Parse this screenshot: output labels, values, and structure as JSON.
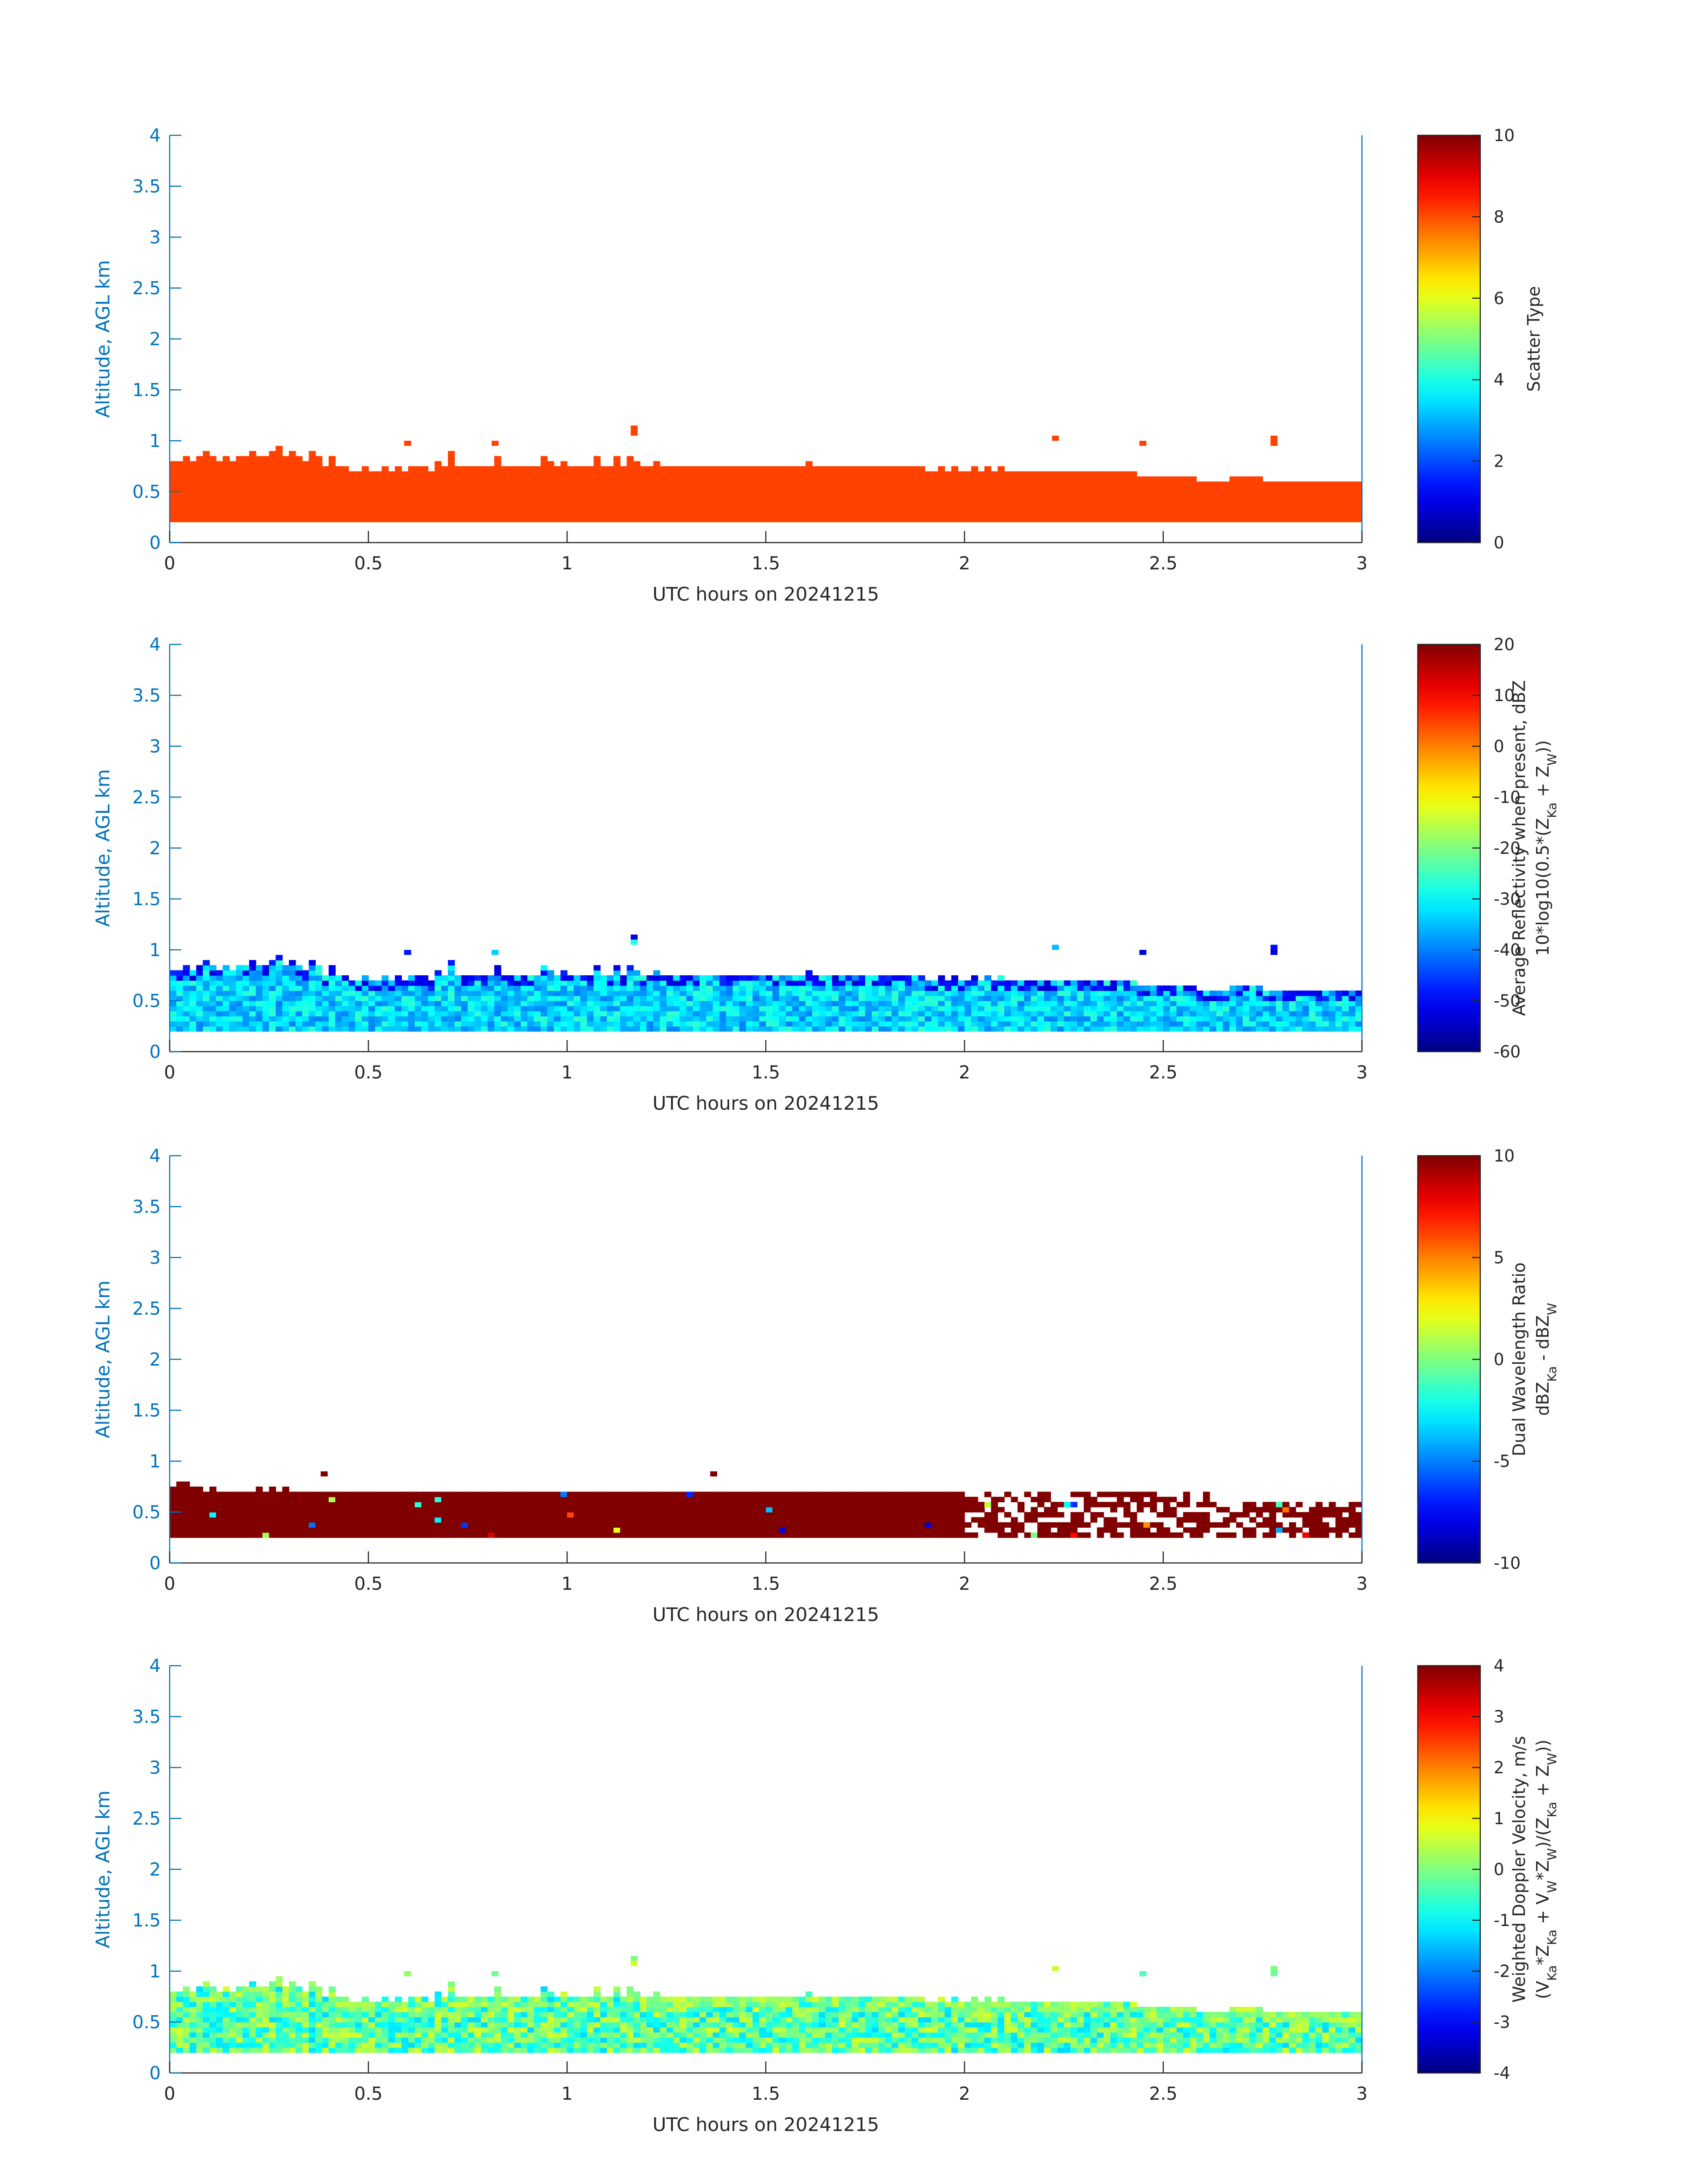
{
  "chart_data": [
    {
      "type": "heatmap",
      "xlabel": "UTC hours on 20241215",
      "ylabel": "Altitude, AGL km",
      "xlim": [
        0,
        3
      ],
      "ylim": [
        0,
        4
      ],
      "xticks": [
        "0",
        "0.5",
        "1",
        "1.5",
        "2",
        "2.5",
        "3"
      ],
      "yticks": [
        "0",
        "0.5",
        "1",
        "1.5",
        "2",
        "2.5",
        "3",
        "3.5",
        "4"
      ],
      "colorbar": {
        "label_lines": [
          "Scatter Type"
        ],
        "range": [
          0,
          10
        ],
        "ticks": [
          "0",
          "2",
          "4",
          "6",
          "8",
          "10"
        ]
      },
      "field": {
        "kind": "constant",
        "value": 8.1
      },
      "echo": {
        "base_km": 0.2,
        "top_km": [
          0.8,
          0.8,
          0.85,
          0.8,
          0.85,
          0.9,
          0.85,
          0.8,
          0.85,
          0.8,
          0.85,
          0.85,
          0.9,
          0.85,
          0.85,
          0.9,
          0.95,
          0.85,
          0.9,
          0.85,
          0.8,
          0.9,
          0.85,
          0.75,
          0.85,
          0.75,
          0.75,
          0.7,
          0.7,
          0.75,
          0.7,
          0.7,
          0.75,
          0.7,
          0.75,
          0.7,
          0.75,
          0.75,
          0.75,
          0.7,
          0.8,
          0.75,
          0.9,
          0.75,
          0.75,
          0.75,
          0.75,
          0.75,
          0.75,
          0.85,
          0.75,
          0.75,
          0.75,
          0.75,
          0.75,
          0.75,
          0.85,
          0.8,
          0.75,
          0.8,
          0.75,
          0.75,
          0.75,
          0.75,
          0.85,
          0.75,
          0.75,
          0.85,
          0.75,
          0.85,
          0.8,
          0.75,
          0.75,
          0.8,
          0.75,
          0.75,
          0.75,
          0.75,
          0.75,
          0.75,
          0.75,
          0.75,
          0.75,
          0.75,
          0.75,
          0.75,
          0.75,
          0.75,
          0.75,
          0.75,
          0.75,
          0.75,
          0.75,
          0.75,
          0.75,
          0.75,
          0.8,
          0.75,
          0.75,
          0.75,
          0.75,
          0.75,
          0.75,
          0.75,
          0.75,
          0.75,
          0.75,
          0.75,
          0.75,
          0.75,
          0.75,
          0.75,
          0.75,
          0.75,
          0.7,
          0.7,
          0.75,
          0.7,
          0.75,
          0.7,
          0.7,
          0.75,
          0.7,
          0.75,
          0.7,
          0.75,
          0.7,
          0.7,
          0.7,
          0.7,
          0.7,
          0.7,
          0.7,
          0.7,
          0.7,
          0.7,
          0.7,
          0.7,
          0.7,
          0.7,
          0.7,
          0.7,
          0.7,
          0.7,
          0.7,
          0.7,
          0.65,
          0.65,
          0.65,
          0.65,
          0.65,
          0.65,
          0.65,
          0.65,
          0.65,
          0.6,
          0.6,
          0.6,
          0.6,
          0.6,
          0.65,
          0.65,
          0.65,
          0.65,
          0.65,
          0.6,
          0.6,
          0.6,
          0.6,
          0.6,
          0.6,
          0.6,
          0.6,
          0.6,
          0.6
        ],
        "isolated": [
          [
            0.59,
            0.95
          ],
          [
            0.81,
            0.95
          ],
          [
            1.16,
            1.1
          ],
          [
            1.16,
            1.05
          ],
          [
            2.22,
            1.0
          ],
          [
            2.44,
            0.95
          ],
          [
            2.77,
            1.0
          ],
          [
            2.77,
            0.95
          ]
        ]
      }
    },
    {
      "type": "heatmap",
      "xlabel": "UTC hours on 20241215",
      "ylabel": "Altitude, AGL km",
      "xlim": [
        0,
        3
      ],
      "ylim": [
        0,
        4
      ],
      "xticks": [
        "0",
        "0.5",
        "1",
        "1.5",
        "2",
        "2.5",
        "3"
      ],
      "yticks": [
        "0",
        "0.5",
        "1",
        "1.5",
        "2",
        "2.5",
        "3",
        "3.5",
        "4"
      ],
      "colorbar": {
        "label_lines": [
          "Average Reflectivity when present, dBZ",
          "10*log10(0.5*(Z_Ka + Z_W))"
        ],
        "range": [
          -60,
          20
        ],
        "ticks": [
          "-60",
          "-50",
          "-40",
          "-30",
          "-20",
          "-10",
          "0",
          "10",
          "20"
        ]
      },
      "field": {
        "kind": "random",
        "mean": -33,
        "spread": 7,
        "top_mean": -50,
        "seed": 2
      },
      "echo": {
        "base_km": 0.2,
        "top_km": [
          0.8,
          0.8,
          0.85,
          0.8,
          0.85,
          0.9,
          0.85,
          0.8,
          0.85,
          0.8,
          0.85,
          0.85,
          0.9,
          0.85,
          0.85,
          0.9,
          0.95,
          0.85,
          0.9,
          0.85,
          0.8,
          0.9,
          0.85,
          0.75,
          0.85,
          0.75,
          0.75,
          0.7,
          0.7,
          0.75,
          0.7,
          0.7,
          0.75,
          0.7,
          0.75,
          0.7,
          0.75,
          0.75,
          0.75,
          0.7,
          0.8,
          0.75,
          0.9,
          0.75,
          0.75,
          0.75,
          0.75,
          0.75,
          0.75,
          0.85,
          0.75,
          0.75,
          0.75,
          0.75,
          0.75,
          0.75,
          0.85,
          0.8,
          0.75,
          0.8,
          0.75,
          0.75,
          0.75,
          0.75,
          0.85,
          0.75,
          0.75,
          0.85,
          0.75,
          0.85,
          0.8,
          0.75,
          0.75,
          0.8,
          0.75,
          0.75,
          0.75,
          0.75,
          0.75,
          0.75,
          0.75,
          0.75,
          0.75,
          0.75,
          0.75,
          0.75,
          0.75,
          0.75,
          0.75,
          0.75,
          0.75,
          0.75,
          0.75,
          0.75,
          0.75,
          0.75,
          0.8,
          0.75,
          0.75,
          0.75,
          0.75,
          0.75,
          0.75,
          0.75,
          0.75,
          0.75,
          0.75,
          0.75,
          0.75,
          0.75,
          0.75,
          0.75,
          0.75,
          0.75,
          0.7,
          0.7,
          0.75,
          0.7,
          0.75,
          0.7,
          0.7,
          0.75,
          0.7,
          0.75,
          0.7,
          0.75,
          0.7,
          0.7,
          0.7,
          0.7,
          0.7,
          0.7,
          0.7,
          0.7,
          0.7,
          0.7,
          0.7,
          0.7,
          0.7,
          0.7,
          0.7,
          0.7,
          0.7,
          0.7,
          0.7,
          0.7,
          0.65,
          0.65,
          0.65,
          0.65,
          0.65,
          0.65,
          0.65,
          0.65,
          0.65,
          0.6,
          0.6,
          0.6,
          0.6,
          0.6,
          0.65,
          0.65,
          0.65,
          0.65,
          0.65,
          0.6,
          0.6,
          0.6,
          0.6,
          0.6,
          0.6,
          0.6,
          0.6,
          0.6,
          0.6
        ],
        "isolated": [
          [
            0.59,
            0.95
          ],
          [
            0.81,
            0.95
          ],
          [
            1.16,
            1.1
          ],
          [
            1.16,
            1.05
          ],
          [
            2.22,
            1.0
          ],
          [
            2.44,
            0.95
          ],
          [
            2.77,
            1.0
          ],
          [
            2.77,
            0.95
          ]
        ]
      }
    },
    {
      "type": "heatmap",
      "xlabel": "UTC hours on 20241215",
      "ylabel": "Altitude, AGL km",
      "xlim": [
        0,
        3
      ],
      "ylim": [
        0,
        4
      ],
      "xticks": [
        "0",
        "0.5",
        "1",
        "1.5",
        "2",
        "2.5",
        "3"
      ],
      "yticks": [
        "0",
        "0.5",
        "1",
        "1.5",
        "2",
        "2.5",
        "3",
        "3.5",
        "4"
      ],
      "colorbar": {
        "label_lines": [
          "Dual Wavelength Ratio",
          "dBZ_Ka - dBZ_W"
        ],
        "range": [
          -10,
          10
        ],
        "ticks": [
          "-10",
          "-5",
          "0",
          "5",
          "10"
        ]
      },
      "field": {
        "kind": "dwr",
        "value": 10,
        "outlier_rate": 0.02,
        "seed": 3
      },
      "echo": {
        "base_km": 0.25,
        "top_km": [
          0.75,
          0.8,
          0.8,
          0.75,
          0.75,
          0.7,
          0.75,
          0.7,
          0.7,
          0.7,
          0.7,
          0.7,
          0.7,
          0.75,
          0.7,
          0.75,
          0.7,
          0.75,
          0.7,
          0.7,
          0.7,
          0.7,
          0.7,
          0.7,
          0.7,
          0.7,
          0.7,
          0.7,
          0.7,
          0.7,
          0.7,
          0.7,
          0.7,
          0.7,
          0.7,
          0.7,
          0.7,
          0.7,
          0.7,
          0.7,
          0.7,
          0.7,
          0.7,
          0.7,
          0.7,
          0.7,
          0.7,
          0.7,
          0.7,
          0.7,
          0.7,
          0.7,
          0.7,
          0.7,
          0.7,
          0.7,
          0.7,
          0.7,
          0.7,
          0.7,
          0.7,
          0.7,
          0.7,
          0.7,
          0.7,
          0.7,
          0.7,
          0.7,
          0.7,
          0.7,
          0.7,
          0.7,
          0.7,
          0.7,
          0.7,
          0.7,
          0.7,
          0.7,
          0.7,
          0.7,
          0.7,
          0.7,
          0.7,
          0.7,
          0.7,
          0.7,
          0.7,
          0.7,
          0.7,
          0.7,
          0.7,
          0.7,
          0.7,
          0.7,
          0.7,
          0.7,
          0.7,
          0.7,
          0.7,
          0.7,
          0.7,
          0.7,
          0.7,
          0.7,
          0.7,
          0.7,
          0.7,
          0.7,
          0.7,
          0.7,
          0.7,
          0.7,
          0.7,
          0.7,
          0.7,
          0.7,
          0.7,
          0.7,
          0.7,
          0.7,
          0.7,
          0.7,
          0.7,
          0.7,
          0.7,
          0.7,
          0.7,
          0.7,
          0.7,
          0.7,
          0.7,
          0.7,
          0.7,
          0.7,
          0.7,
          0.7,
          0.7,
          0.7,
          0.7,
          0.7,
          0.7,
          0.7,
          0.7,
          0.7,
          0.7,
          0.7,
          0.7,
          0.7,
          0.7,
          0.7,
          0.7,
          0.7,
          0.7,
          0.7,
          0.7,
          0.7,
          0.7,
          0.6,
          0.6,
          0.6,
          0.6,
          0.6,
          0.6,
          0.6,
          0.6,
          0.6,
          0.6,
          0.6,
          0.6,
          0.6,
          0.6,
          0.6,
          0.6,
          0.6,
          0.6,
          0.6
        ],
        "gap_from_x": 2.0,
        "gap_rate": 0.4,
        "isolated": [
          [
            0.38,
            0.85
          ],
          [
            1.36,
            0.85
          ]
        ]
      }
    },
    {
      "type": "heatmap",
      "xlabel": "UTC hours on 20241215",
      "ylabel": "Altitude, AGL km",
      "xlim": [
        0,
        3
      ],
      "ylim": [
        0,
        4
      ],
      "xticks": [
        "0",
        "0.5",
        "1",
        "1.5",
        "2",
        "2.5",
        "3"
      ],
      "yticks": [
        "0",
        "0.5",
        "1",
        "1.5",
        "2",
        "2.5",
        "3",
        "3.5",
        "4"
      ],
      "colorbar": {
        "label_lines": [
          "Weighted Doppler Velocity, m/s",
          "(V_Ka*Z_Ka + V_W*Z_W)/(Z_Ka + Z_W))"
        ],
        "range": [
          -4,
          4
        ],
        "ticks": [
          "-4",
          "-3",
          "-2",
          "-1",
          "0",
          "1",
          "2",
          "3",
          "4"
        ]
      },
      "field": {
        "kind": "random",
        "mean": -0.3,
        "spread": 1.0,
        "top_mean": 0.2,
        "seed": 4
      },
      "echo": {
        "base_km": 0.2,
        "top_km": [
          0.8,
          0.8,
          0.85,
          0.8,
          0.85,
          0.9,
          0.85,
          0.8,
          0.85,
          0.8,
          0.85,
          0.85,
          0.9,
          0.85,
          0.85,
          0.9,
          0.95,
          0.85,
          0.9,
          0.85,
          0.8,
          0.9,
          0.85,
          0.75,
          0.85,
          0.75,
          0.75,
          0.7,
          0.7,
          0.75,
          0.7,
          0.7,
          0.75,
          0.7,
          0.75,
          0.7,
          0.75,
          0.75,
          0.75,
          0.7,
          0.8,
          0.75,
          0.9,
          0.75,
          0.75,
          0.75,
          0.75,
          0.75,
          0.75,
          0.85,
          0.75,
          0.75,
          0.75,
          0.75,
          0.75,
          0.75,
          0.85,
          0.8,
          0.75,
          0.8,
          0.75,
          0.75,
          0.75,
          0.75,
          0.85,
          0.75,
          0.75,
          0.85,
          0.75,
          0.85,
          0.8,
          0.75,
          0.75,
          0.8,
          0.75,
          0.75,
          0.75,
          0.75,
          0.75,
          0.75,
          0.75,
          0.75,
          0.75,
          0.75,
          0.75,
          0.75,
          0.75,
          0.75,
          0.75,
          0.75,
          0.75,
          0.75,
          0.75,
          0.75,
          0.75,
          0.75,
          0.8,
          0.75,
          0.75,
          0.75,
          0.75,
          0.75,
          0.75,
          0.75,
          0.75,
          0.75,
          0.75,
          0.75,
          0.75,
          0.75,
          0.75,
          0.75,
          0.75,
          0.75,
          0.7,
          0.7,
          0.75,
          0.7,
          0.75,
          0.7,
          0.7,
          0.75,
          0.7,
          0.75,
          0.7,
          0.75,
          0.7,
          0.7,
          0.7,
          0.7,
          0.7,
          0.7,
          0.7,
          0.7,
          0.7,
          0.7,
          0.7,
          0.7,
          0.7,
          0.7,
          0.7,
          0.7,
          0.7,
          0.7,
          0.7,
          0.7,
          0.65,
          0.65,
          0.65,
          0.65,
          0.65,
          0.65,
          0.65,
          0.65,
          0.65,
          0.6,
          0.6,
          0.6,
          0.6,
          0.6,
          0.65,
          0.65,
          0.65,
          0.65,
          0.65,
          0.6,
          0.6,
          0.6,
          0.6,
          0.6,
          0.6,
          0.6,
          0.6,
          0.6,
          0.6
        ],
        "isolated": [
          [
            0.59,
            0.95
          ],
          [
            0.81,
            0.95
          ],
          [
            1.16,
            1.1
          ],
          [
            1.16,
            1.05
          ],
          [
            2.22,
            1.0
          ],
          [
            2.44,
            0.95
          ],
          [
            2.77,
            1.0
          ],
          [
            2.77,
            0.95
          ]
        ]
      }
    }
  ],
  "colors": {
    "axis": "#0072bd",
    "text": "#262626",
    "background": "#ffffff"
  }
}
